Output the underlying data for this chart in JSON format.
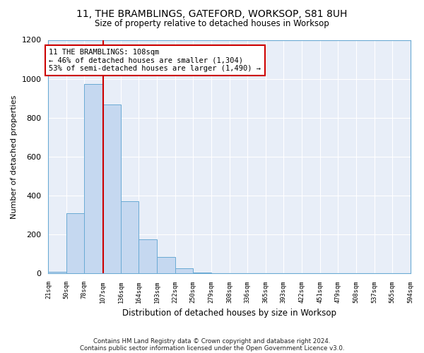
{
  "title_line1": "11, THE BRAMBLINGS, GATEFORD, WORKSOP, S81 8UH",
  "title_line2": "Size of property relative to detached houses in Worksop",
  "xlabel": "Distribution of detached houses by size in Worksop",
  "ylabel": "Number of detached properties",
  "bar_edges": [
    21,
    50,
    78,
    107,
    136,
    164,
    193,
    222,
    250,
    279,
    308,
    336,
    365,
    393,
    422,
    451,
    479,
    508,
    537,
    565,
    594
  ],
  "bar_heights": [
    10,
    310,
    975,
    870,
    370,
    175,
    85,
    28,
    5,
    2,
    1,
    0,
    0,
    0,
    0,
    0,
    0,
    0,
    0,
    0
  ],
  "bar_color": "#c5d8f0",
  "bar_edgecolor": "#6aaad4",
  "property_size": 108,
  "vline_color": "#cc0000",
  "annotation_line1": "11 THE BRAMBLINGS: 108sqm",
  "annotation_line2": "← 46% of detached houses are smaller (1,304)",
  "annotation_line3": "53% of semi-detached houses are larger (1,490) →",
  "annotation_box_color": "#ffffff",
  "annotation_border_color": "#cc0000",
  "ylim": [
    0,
    1200
  ],
  "yticks": [
    0,
    200,
    400,
    600,
    800,
    1000,
    1200
  ],
  "footer_line1": "Contains HM Land Registry data © Crown copyright and database right 2024.",
  "footer_line2": "Contains public sector information licensed under the Open Government Licence v3.0.",
  "background_color": "#ffffff",
  "plot_bg_color": "#e8eef8",
  "grid_color": "#ffffff",
  "tick_labels": [
    "21sqm",
    "50sqm",
    "78sqm",
    "107sqm",
    "136sqm",
    "164sqm",
    "193sqm",
    "222sqm",
    "250sqm",
    "279sqm",
    "308sqm",
    "336sqm",
    "365sqm",
    "393sqm",
    "422sqm",
    "451sqm",
    "479sqm",
    "508sqm",
    "537sqm",
    "565sqm",
    "594sqm"
  ]
}
